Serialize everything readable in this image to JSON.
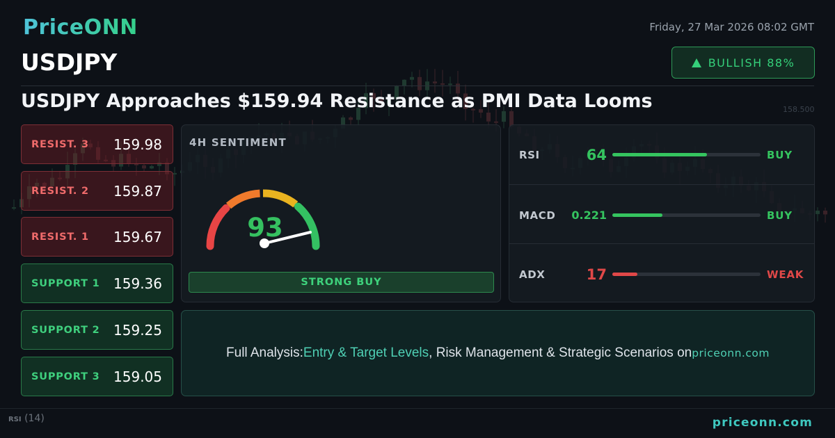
{
  "brand": {
    "logo_text": "PriceONN"
  },
  "datetime": "Friday, 27 Mar 2026 08:02 GMT",
  "symbol": "USDJPY",
  "bias": {
    "label": "BULLISH 88%",
    "direction": "up",
    "color": "#35d07a"
  },
  "headline": "USDJPY Approaches $159.94 Resistance as PMI Data Looms",
  "levels": {
    "resistance": [
      {
        "label": "RESIST. 3",
        "value": "159.98"
      },
      {
        "label": "RESIST. 2",
        "value": "159.87"
      },
      {
        "label": "RESIST. 1",
        "value": "159.67"
      }
    ],
    "support": [
      {
        "label": "SUPPORT 1",
        "value": "159.36"
      },
      {
        "label": "SUPPORT 2",
        "value": "159.25"
      },
      {
        "label": "SUPPORT 3",
        "value": "159.05"
      }
    ]
  },
  "sentiment": {
    "title": "4H SENTIMENT",
    "score": "93",
    "score_value": 93,
    "signal": "STRONG BUY"
  },
  "indicators": [
    {
      "name": "RSI",
      "value": "64",
      "signal": "BUY",
      "level": 0.64,
      "color": "#35c45f"
    },
    {
      "name": "MACD",
      "value": "0.221",
      "signal": "BUY",
      "level": 0.34,
      "color": "#35c45f"
    },
    {
      "name": "ADX",
      "value": "17",
      "signal": "WEAK",
      "level": 0.17,
      "color": "#e04848"
    }
  ],
  "cta": {
    "prefix": "Full Analysis: ",
    "highlight": "Entry & Target Levels",
    "middle": ", Risk Management & Strategic Scenarios on ",
    "site": "priceonn.com"
  },
  "background_chart": {
    "price_label": "158.500",
    "rsi_label": "RSI",
    "rsi_period": "(14)"
  },
  "footer": {
    "site": "priceonn.com"
  },
  "colors": {
    "background": "#0d1117",
    "bullish": "#35d07a",
    "bearish": "#ef6b6b",
    "accent": "#3fc9c0"
  }
}
